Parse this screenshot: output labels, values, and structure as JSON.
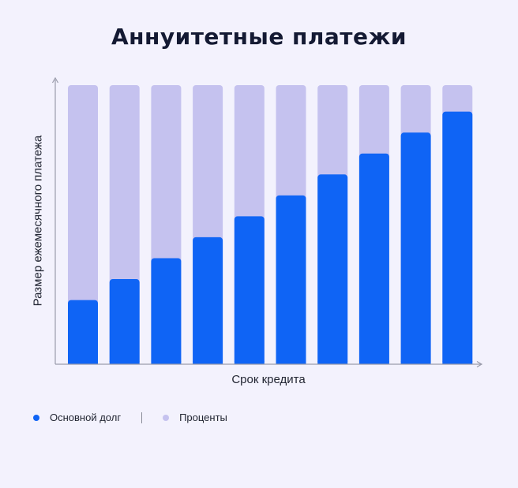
{
  "chart_data": {
    "type": "bar",
    "stacked": true,
    "title": "Аннуитетные платежи",
    "xlabel": "Срок кредита",
    "ylabel": "Размер ежемесячного платежа",
    "categories": [
      "",
      "",
      "",
      "",
      "",
      "",
      "",
      "",
      "",
      ""
    ],
    "series": [
      {
        "name": "Основной долг",
        "color": "#0f64f5",
        "values": [
          23,
          30.5,
          38,
          45.5,
          53,
          60.5,
          68,
          75.5,
          83,
          90.5
        ]
      },
      {
        "name": "Проценты",
        "color": "#c5c2ef",
        "values": [
          77,
          69.5,
          62,
          54.5,
          47,
          39.5,
          32,
          24.5,
          17,
          9.5
        ]
      }
    ],
    "ylim": [
      0,
      100
    ],
    "grid": false,
    "legend_position": "bottom-left"
  }
}
